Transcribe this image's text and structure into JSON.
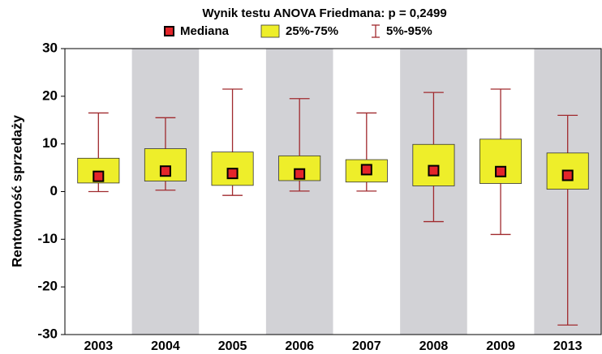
{
  "chart_data": {
    "type": "box",
    "title": "Wynik testu ANOVA Friedmana: p = 0,2499",
    "y_label": "Rentowność sprzedaży",
    "categories": [
      "2003",
      "2004",
      "2005",
      "2006",
      "2007",
      "2008",
      "2009",
      "2013"
    ],
    "whisker_low": [
      0,
      0.3,
      -0.8,
      0.1,
      0.1,
      -6.3,
      -9,
      -28
    ],
    "q1": [
      1.8,
      2.2,
      1.3,
      2.3,
      2.0,
      1.2,
      1.7,
      0.5
    ],
    "median": [
      3.2,
      4.3,
      3.8,
      3.7,
      4.6,
      4.4,
      4.2,
      3.4
    ],
    "q3": [
      7.0,
      9.0,
      8.3,
      7.5,
      6.7,
      9.9,
      11.0,
      8.1
    ],
    "whisker_high": [
      16.5,
      15.5,
      21.5,
      19.5,
      16.5,
      20.8,
      21.5,
      16.0
    ],
    "legend": {
      "median": "Mediana",
      "box": "25%-75%",
      "whisker": "5%-95%"
    },
    "median_color": "#e4252a",
    "box_color": "#eeee2a",
    "whisker_color": "#a02a2e",
    "band_color": "#d2d2d6",
    "ylim": [
      -30,
      30
    ],
    "yticks": [
      30,
      20,
      10,
      0,
      -10,
      -20,
      -30
    ]
  }
}
